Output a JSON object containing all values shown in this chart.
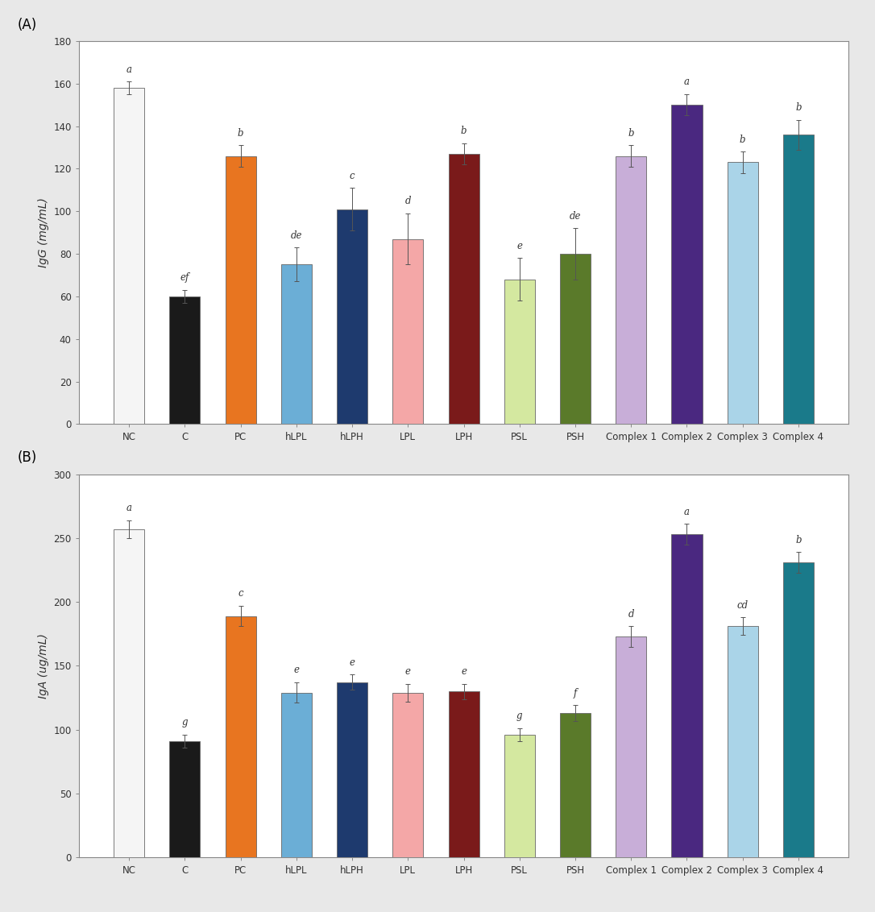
{
  "categories": [
    "NC",
    "C",
    "PC",
    "hLPL",
    "hLPH",
    "LPL",
    "LPH",
    "PSL",
    "PSH",
    "Complex 1",
    "Complex 2",
    "Complex 3",
    "Complex 4"
  ],
  "IgG_values": [
    158,
    60,
    126,
    75,
    101,
    87,
    127,
    68,
    80,
    126,
    150,
    123,
    136
  ],
  "IgG_errors": [
    3,
    3,
    5,
    8,
    10,
    12,
    5,
    10,
    12,
    5,
    5,
    5,
    7
  ],
  "IgG_letters": [
    "a",
    "ef",
    "b",
    "de",
    "c",
    "d",
    "b",
    "e",
    "de",
    "b",
    "a",
    "b",
    "b"
  ],
  "IgG_ylabel": "IgG (mg/mL)",
  "IgG_ylim": [
    0,
    180
  ],
  "IgG_yticks": [
    0,
    20,
    40,
    60,
    80,
    100,
    120,
    140,
    160,
    180
  ],
  "IgA_values": [
    257,
    91,
    189,
    129,
    137,
    129,
    130,
    96,
    113,
    173,
    253,
    181,
    231
  ],
  "IgA_errors": [
    7,
    5,
    8,
    8,
    6,
    7,
    6,
    5,
    6,
    8,
    8,
    7,
    8
  ],
  "IgA_letters": [
    "a",
    "g",
    "c",
    "e",
    "e",
    "e",
    "e",
    "g",
    "f",
    "d",
    "a",
    "cd",
    "b"
  ],
  "IgA_ylabel": "IgA (ug/mL)",
  "IgA_ylim": [
    0,
    300
  ],
  "IgA_yticks": [
    0,
    50,
    100,
    150,
    200,
    250,
    300
  ],
  "bar_colors": [
    "#f5f5f5",
    "#1a1a1a",
    "#e87520",
    "#6baed6",
    "#1e3a6e",
    "#f4a7a7",
    "#7a1a1a",
    "#d4e8a0",
    "#5a7a2a",
    "#c8aed8",
    "#4a2880",
    "#aad4e8",
    "#1a7a8a"
  ],
  "bar_edgecolor": "#666666",
  "bar_width": 0.55,
  "panel_A_label": "(A)",
  "panel_B_label": "(B)",
  "tick_fontsize": 8.5,
  "label_fontsize": 10,
  "letter_fontsize": 8.5,
  "panel_label_fontsize": 12,
  "figure_facecolor": "#e8e8e8"
}
